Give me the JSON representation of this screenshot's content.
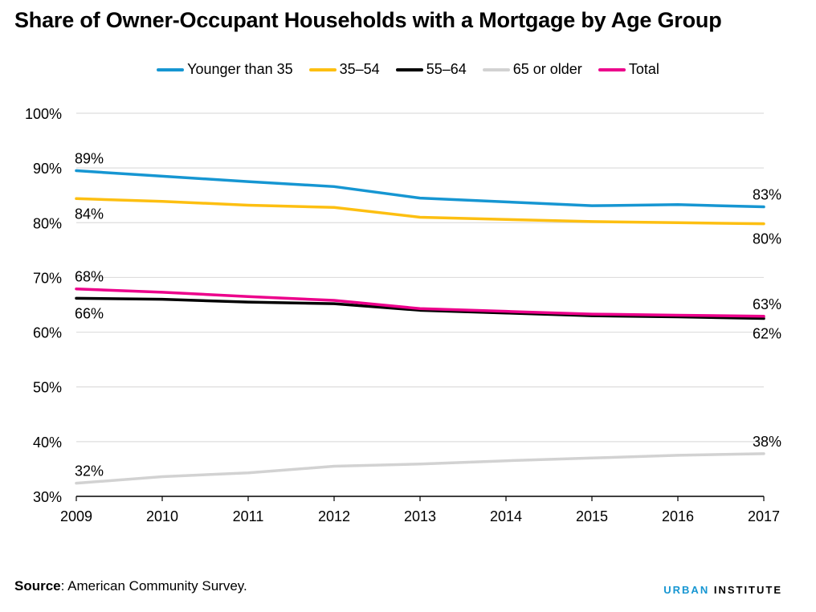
{
  "chart_data": {
    "type": "line",
    "title": "Share of Owner-Occupant Households with a Mortgage by Age Group",
    "x": [
      2009,
      2010,
      2011,
      2012,
      2013,
      2014,
      2015,
      2016,
      2017
    ],
    "ylim": [
      30,
      100
    ],
    "yticks": [
      "100%",
      "90%",
      "80%",
      "70%",
      "60%",
      "50%",
      "40%",
      "30%"
    ],
    "ytick_values": [
      100,
      90,
      80,
      70,
      60,
      50,
      40,
      30
    ],
    "grid": true,
    "legend_position": "top-center",
    "series": [
      {
        "name": "Younger than 35",
        "color": "#1696d2",
        "values": [
          89.5,
          88.5,
          87.5,
          86.6,
          84.5,
          83.8,
          83.1,
          83.3,
          82.9
        ]
      },
      {
        "name": "35–54",
        "color": "#fdbf11",
        "values": [
          84.4,
          83.9,
          83.2,
          82.8,
          81.0,
          80.6,
          80.2,
          80.0,
          79.8
        ]
      },
      {
        "name": "55–64",
        "color": "#000000",
        "values": [
          66.2,
          66.0,
          65.5,
          65.2,
          64.0,
          63.5,
          63.0,
          62.8,
          62.5
        ]
      },
      {
        "name": "65 or older",
        "color": "#d2d2d2",
        "values": [
          32.4,
          33.6,
          34.3,
          35.5,
          35.9,
          36.5,
          37.0,
          37.5,
          37.8
        ]
      },
      {
        "name": "Total",
        "color": "#ec008b",
        "values": [
          67.9,
          67.3,
          66.5,
          65.8,
          64.3,
          63.8,
          63.3,
          63.1,
          62.9
        ]
      }
    ],
    "annotations": [
      {
        "series": "Younger than 35",
        "x": 2009,
        "text": "89%",
        "pos": "above"
      },
      {
        "series": "Younger than 35",
        "x": 2017,
        "text": "83%",
        "pos": "above"
      },
      {
        "series": "35–54",
        "x": 2009,
        "text": "84%",
        "pos": "below"
      },
      {
        "series": "35–54",
        "x": 2017,
        "text": "80%",
        "pos": "below"
      },
      {
        "series": "Total",
        "x": 2009,
        "text": "68%",
        "pos": "above"
      },
      {
        "series": "Total",
        "x": 2017,
        "text": "63%",
        "pos": "above"
      },
      {
        "series": "55–64",
        "x": 2009,
        "text": "66%",
        "pos": "below"
      },
      {
        "series": "55–64",
        "x": 2017,
        "text": "62%",
        "pos": "below"
      },
      {
        "series": "65 or older",
        "x": 2009,
        "text": "32%",
        "pos": "above"
      },
      {
        "series": "65 or older",
        "x": 2017,
        "text": "38%",
        "pos": "above"
      }
    ]
  },
  "source": {
    "label": "Source",
    "text": ": American Community Survey."
  },
  "brand": {
    "part1": "URBAN",
    "part2": " INSTITUTE"
  }
}
